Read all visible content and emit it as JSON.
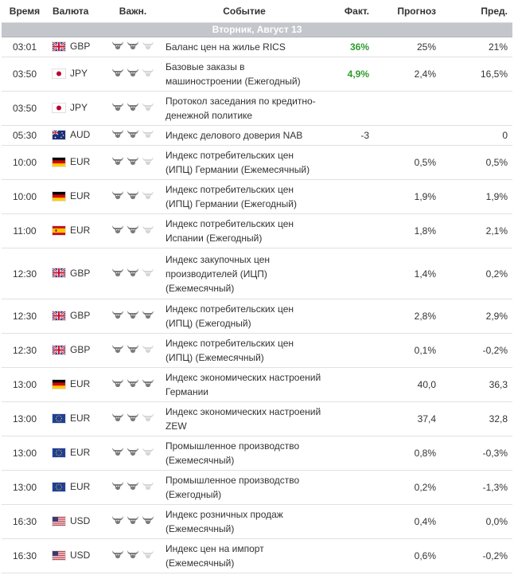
{
  "headers": {
    "time": "Время",
    "currency": "Валюта",
    "importance": "Важн.",
    "event": "Событие",
    "actual": "Факт.",
    "forecast": "Прогноз",
    "previous": "Пред."
  },
  "day_label": "Вторник, Август 13",
  "colors": {
    "header_band": "#c3c6cb",
    "actual_good": "#2f9a2f",
    "bull_active": "#7a7a7a",
    "bull_inactive": "#d5d5d5"
  },
  "rows": [
    {
      "time": "03:01",
      "flag": "gb",
      "currency": "GBP",
      "importance": 2,
      "event": "Баланс цен на жилье RICS",
      "actual": "36%",
      "actual_status": "good",
      "forecast": "25%",
      "previous": "21%"
    },
    {
      "time": "03:50",
      "flag": "jp",
      "currency": "JPY",
      "importance": 2,
      "event": "Базовые заказы в машиностроении (Ежегодный)",
      "actual": "4,9%",
      "actual_status": "good",
      "forecast": "2,4%",
      "previous": "16,5%"
    },
    {
      "time": "03:50",
      "flag": "jp",
      "currency": "JPY",
      "importance": 2,
      "event": "Протокол заседания по кредитно-денежной политике",
      "actual": "",
      "actual_status": "plain",
      "forecast": "",
      "previous": ""
    },
    {
      "time": "05:30",
      "flag": "au",
      "currency": "AUD",
      "importance": 2,
      "event": "Индекс делового доверия NAB",
      "actual": "-3",
      "actual_status": "plain",
      "forecast": "",
      "previous": "0"
    },
    {
      "time": "10:00",
      "flag": "de",
      "currency": "EUR",
      "importance": 2,
      "event": "Индекс потребительских цен (ИПЦ) Германии (Ежемесячный)",
      "actual": "",
      "actual_status": "plain",
      "forecast": "0,5%",
      "previous": "0,5%"
    },
    {
      "time": "10:00",
      "flag": "de",
      "currency": "EUR",
      "importance": 2,
      "event": "Индекс потребительских цен (ИПЦ) Германии (Ежегодный)",
      "actual": "",
      "actual_status": "plain",
      "forecast": "1,9%",
      "previous": "1,9%"
    },
    {
      "time": "11:00",
      "flag": "es",
      "currency": "EUR",
      "importance": 2,
      "event": "Индекс потребительских цен Испании (Ежегодный)",
      "actual": "",
      "actual_status": "plain",
      "forecast": "1,8%",
      "previous": "2,1%"
    },
    {
      "time": "12:30",
      "flag": "gb",
      "currency": "GBP",
      "importance": 2,
      "event": "Индекс закупочных цен производителей (ИЦП) (Ежемесячный)",
      "actual": "",
      "actual_status": "plain",
      "forecast": "1,4%",
      "previous": "0,2%"
    },
    {
      "time": "12:30",
      "flag": "gb",
      "currency": "GBP",
      "importance": 3,
      "event": "Индекс потребительских цен (ИПЦ) (Ежегодный)",
      "actual": "",
      "actual_status": "plain",
      "forecast": "2,8%",
      "previous": "2,9%"
    },
    {
      "time": "12:30",
      "flag": "gb",
      "currency": "GBP",
      "importance": 2,
      "event": "Индекс потребительских цен (ИПЦ) (Ежемесячный)",
      "actual": "",
      "actual_status": "plain",
      "forecast": "0,1%",
      "previous": "-0,2%"
    },
    {
      "time": "13:00",
      "flag": "de",
      "currency": "EUR",
      "importance": 3,
      "event": "Индекс экономических настроений Германии",
      "actual": "",
      "actual_status": "plain",
      "forecast": "40,0",
      "previous": "36,3"
    },
    {
      "time": "13:00",
      "flag": "eu",
      "currency": "EUR",
      "importance": 2,
      "event": "Индекс экономических настроений ZEW",
      "actual": "",
      "actual_status": "plain",
      "forecast": "37,4",
      "previous": "32,8"
    },
    {
      "time": "13:00",
      "flag": "eu",
      "currency": "EUR",
      "importance": 2,
      "event": "Промышленное производство (Ежемесячный)",
      "actual": "",
      "actual_status": "plain",
      "forecast": "0,8%",
      "previous": "-0,3%"
    },
    {
      "time": "13:00",
      "flag": "eu",
      "currency": "EUR",
      "importance": 2,
      "event": "Промышленное производство (Ежегодный)",
      "actual": "",
      "actual_status": "plain",
      "forecast": "0,2%",
      "previous": "-1,3%"
    },
    {
      "time": "16:30",
      "flag": "us",
      "currency": "USD",
      "importance": 3,
      "event": "Индекс розничных продаж (Ежемесячный)",
      "actual": "",
      "actual_status": "plain",
      "forecast": "0,4%",
      "previous": "0,0%"
    },
    {
      "time": "16:30",
      "flag": "us",
      "currency": "USD",
      "importance": 2,
      "event": "Индекс цен на импорт (Ежемесячный)",
      "actual": "",
      "actual_status": "plain",
      "forecast": "0,6%",
      "previous": "-0,2%"
    }
  ]
}
